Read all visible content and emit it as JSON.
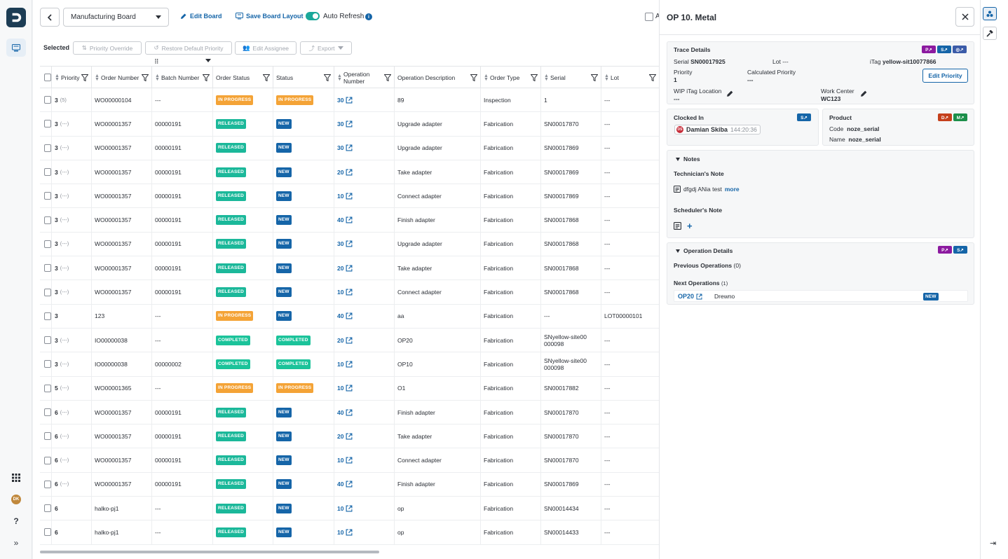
{
  "app": {
    "logo": "D"
  },
  "topbar": {
    "board_name": "Manufacturing Board",
    "edit_board": "Edit Board",
    "save_layout": "Save Board Layout",
    "auto_refresh": "Auto Refresh",
    "info": "i",
    "partial_label": "A"
  },
  "actions": {
    "selected": "Selected",
    "priority_override": "Priority Override",
    "restore_default": "Restore Default Priority",
    "edit_assignee": "Edit Assignee",
    "export": "Export"
  },
  "table": {
    "columns": {
      "priority": "Priority",
      "order_number": "Order Number",
      "batch_number": "Batch Number",
      "order_status": "Order Status",
      "status": "Status",
      "operation_number": "Operation Number",
      "operation_description": "Operation Description",
      "order_type": "Order Type",
      "serial": "Serial",
      "lot": "Lot"
    },
    "rows": [
      {
        "p": "3",
        "ps": "(5)",
        "order": "WO00000104",
        "batch": "---",
        "ostatus": "IN PROGRESS",
        "status": "IN PROGRESS",
        "op": "30",
        "desc": "89",
        "type": "Inspection",
        "serial": "1",
        "lot": "---"
      },
      {
        "p": "3",
        "ps": "(---)",
        "order": "WO00001357",
        "batch": "00000191",
        "ostatus": "RELEASED",
        "status": "NEW",
        "op": "30",
        "desc": "Upgrade adapter",
        "type": "Fabrication",
        "serial": "SN00017870",
        "lot": "---"
      },
      {
        "p": "3",
        "ps": "(---)",
        "order": "WO00001357",
        "batch": "00000191",
        "ostatus": "RELEASED",
        "status": "NEW",
        "op": "30",
        "desc": "Upgrade adapter",
        "type": "Fabrication",
        "serial": "SN00017869",
        "lot": "---"
      },
      {
        "p": "3",
        "ps": "(---)",
        "order": "WO00001357",
        "batch": "00000191",
        "ostatus": "RELEASED",
        "status": "NEW",
        "op": "20",
        "desc": "Take adapter",
        "type": "Fabrication",
        "serial": "SN00017869",
        "lot": "---"
      },
      {
        "p": "3",
        "ps": "(---)",
        "order": "WO00001357",
        "batch": "00000191",
        "ostatus": "RELEASED",
        "status": "NEW",
        "op": "10",
        "desc": "Connect adapter",
        "type": "Fabrication",
        "serial": "SN00017869",
        "lot": "---"
      },
      {
        "p": "3",
        "ps": "(---)",
        "order": "WO00001357",
        "batch": "00000191",
        "ostatus": "RELEASED",
        "status": "NEW",
        "op": "40",
        "desc": "Finish adapter",
        "type": "Fabrication",
        "serial": "SN00017868",
        "lot": "---"
      },
      {
        "p": "3",
        "ps": "(---)",
        "order": "WO00001357",
        "batch": "00000191",
        "ostatus": "RELEASED",
        "status": "NEW",
        "op": "30",
        "desc": "Upgrade adapter",
        "type": "Fabrication",
        "serial": "SN00017868",
        "lot": "---"
      },
      {
        "p": "3",
        "ps": "(---)",
        "order": "WO00001357",
        "batch": "00000191",
        "ostatus": "RELEASED",
        "status": "NEW",
        "op": "20",
        "desc": "Take adapter",
        "type": "Fabrication",
        "serial": "SN00017868",
        "lot": "---"
      },
      {
        "p": "3",
        "ps": "(---)",
        "order": "WO00001357",
        "batch": "00000191",
        "ostatus": "RELEASED",
        "status": "NEW",
        "op": "10",
        "desc": "Connect adapter",
        "type": "Fabrication",
        "serial": "SN00017868",
        "lot": "---"
      },
      {
        "p": "3",
        "ps": "",
        "order": "123",
        "batch": "---",
        "ostatus": "IN PROGRESS",
        "status": "NEW",
        "op": "40",
        "desc": "aa",
        "type": "Fabrication",
        "serial": "---",
        "lot": "LOT00000101"
      },
      {
        "p": "3",
        "ps": "(---)",
        "order": "IO00000038",
        "batch": "---",
        "ostatus": "COMPLETED",
        "status": "COMPLETED",
        "op": "20",
        "desc": "OP20",
        "type": "Fabrication",
        "serial": "SNyellow-site00000098",
        "lot": "---"
      },
      {
        "p": "3",
        "ps": "(---)",
        "order": "IO00000038",
        "batch": "00000002",
        "ostatus": "COMPLETED",
        "status": "COMPLETED",
        "op": "10",
        "desc": "OP10",
        "type": "Fabrication",
        "serial": "SNyellow-site00000098",
        "lot": "---"
      },
      {
        "p": "5",
        "ps": "(---)",
        "order": "WO00001365",
        "batch": "---",
        "ostatus": "IN PROGRESS",
        "status": "IN PROGRESS",
        "op": "10",
        "desc": "O1",
        "type": "Fabrication",
        "serial": "SN00017882",
        "lot": "---"
      },
      {
        "p": "6",
        "ps": "(---)",
        "order": "WO00001357",
        "batch": "00000191",
        "ostatus": "RELEASED",
        "status": "NEW",
        "op": "40",
        "desc": "Finish adapter",
        "type": "Fabrication",
        "serial": "SN00017870",
        "lot": "---"
      },
      {
        "p": "6",
        "ps": "(---)",
        "order": "WO00001357",
        "batch": "00000191",
        "ostatus": "RELEASED",
        "status": "NEW",
        "op": "20",
        "desc": "Take adapter",
        "type": "Fabrication",
        "serial": "SN00017870",
        "lot": "---"
      },
      {
        "p": "6",
        "ps": "(---)",
        "order": "WO00001357",
        "batch": "00000191",
        "ostatus": "RELEASED",
        "status": "NEW",
        "op": "10",
        "desc": "Connect adapter",
        "type": "Fabrication",
        "serial": "SN00017870",
        "lot": "---"
      },
      {
        "p": "6",
        "ps": "(---)",
        "order": "WO00001357",
        "batch": "00000191",
        "ostatus": "RELEASED",
        "status": "NEW",
        "op": "40",
        "desc": "Finish adapter",
        "type": "Fabrication",
        "serial": "SN00017869",
        "lot": "---"
      },
      {
        "p": "6",
        "ps": "",
        "order": "halko-pj1",
        "batch": "---",
        "ostatus": "RELEASED",
        "status": "NEW",
        "op": "10",
        "desc": "op",
        "type": "Fabrication",
        "serial": "SN00014434",
        "lot": "---"
      },
      {
        "p": "6",
        "ps": "",
        "order": "halko-pj1",
        "batch": "---",
        "ostatus": "RELEASED",
        "status": "NEW",
        "op": "10",
        "desc": "op",
        "type": "Fabrication",
        "serial": "SN00014433",
        "lot": "---"
      }
    ]
  },
  "panel": {
    "title": "OP 10. Metal",
    "trace": {
      "heading": "Trace Details",
      "serial_label": "Serial",
      "serial_value": "SN00017925",
      "lot_label": "Lot",
      "lot_value": "---",
      "itag_label": "iTag",
      "itag_value": "yellow-sit10077866",
      "priority_label": "Priority",
      "priority_value": "1",
      "calc_priority_label": "Calculated Priority",
      "calc_priority_value": "---",
      "edit_priority": "Edit Priority",
      "wip_label": "WIP iTag Location",
      "wip_value": "---",
      "wc_label": "Work Center",
      "wc_value": "WC123"
    },
    "clocked": {
      "heading": "Clocked In",
      "initials": "DS",
      "name": "Damian Skiba",
      "time": "144:20:36"
    },
    "product": {
      "heading": "Product",
      "code_label": "Code",
      "code_value": "noze_serial",
      "name_label": "Name",
      "name_value": "noze_serial"
    },
    "notes": {
      "heading": "Notes",
      "tech_label": "Technician's Note",
      "tech_text": "dfgdj ANia test",
      "more": "more",
      "sched_label": "Scheduler's Note",
      "add": "+"
    },
    "opdetails": {
      "heading": "Operation Details",
      "prev_label": "Previous Operations",
      "prev_count": "(0)",
      "next_label": "Next Operations",
      "next_count": "(1)",
      "next_op": "OP20",
      "next_desc": "Drewno",
      "next_status": "NEW"
    }
  },
  "user": {
    "initials": "DK"
  },
  "colors": {
    "accent": "#1565a8",
    "in_progress": "#f4a336",
    "released": "#1bb89a",
    "new": "#1565a8",
    "completed": "#1bc39a"
  }
}
